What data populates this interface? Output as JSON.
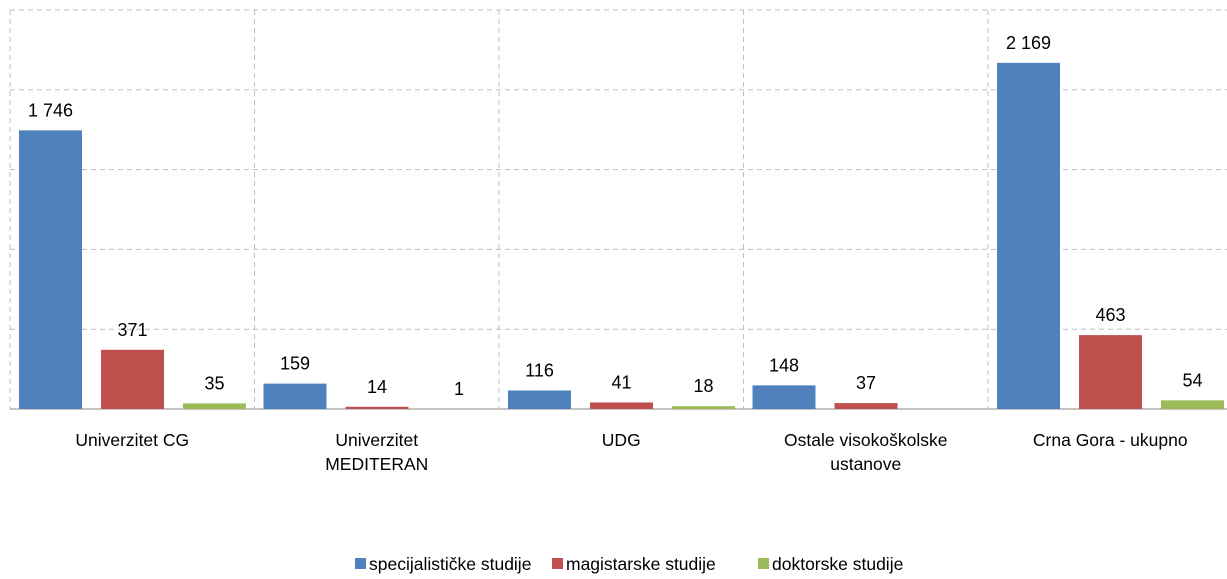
{
  "chart_data": {
    "type": "bar",
    "categories": [
      "Univerzitet CG",
      "Univerzitet MEDITERAN",
      "UDG",
      "Ostale visokoškolske ustanove",
      "Crna Gora - ukupno"
    ],
    "series": [
      {
        "name": "specijalističke studije",
        "color": "#4f81bd",
        "values": [
          1746,
          159,
          116,
          148,
          2169
        ],
        "value_labels": [
          "1 746",
          "159",
          "116",
          "148",
          "2 169"
        ]
      },
      {
        "name": "magistarske studije",
        "color": "#c0504d",
        "values": [
          371,
          14,
          41,
          37,
          463
        ]
      },
      {
        "name": "doktorske studije",
        "color": "#9bbb59",
        "values": [
          35,
          1,
          18,
          null,
          54
        ]
      }
    ],
    "ylim": [
      0,
      2500
    ],
    "yticks": [
      0,
      500,
      1000,
      1500,
      2000,
      2500
    ],
    "grid": true,
    "legend": "bottom"
  }
}
